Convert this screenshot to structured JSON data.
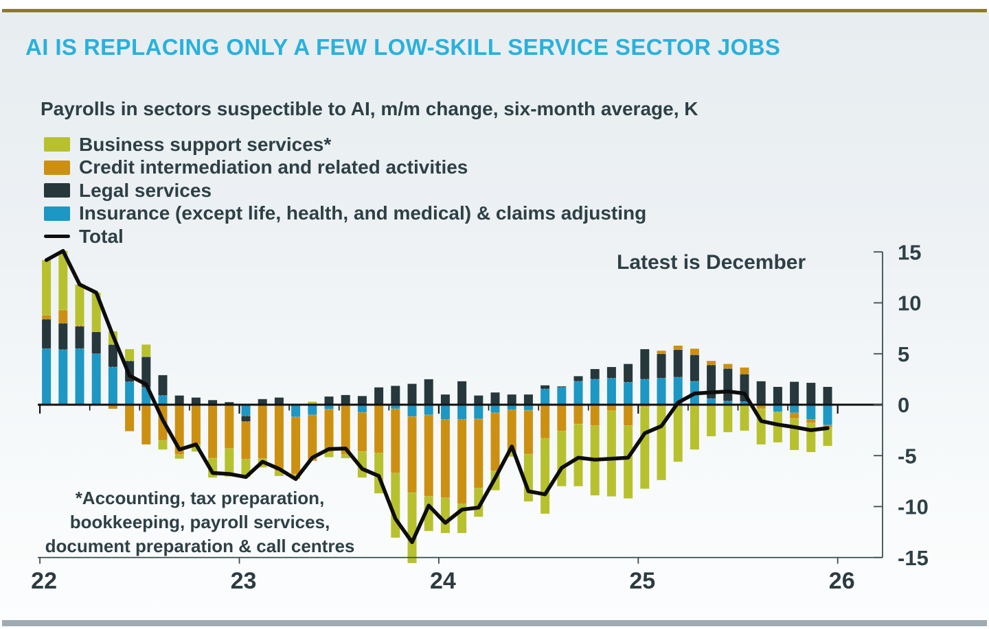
{
  "header": {
    "title": "AI IS REPLACING ONLY A FEW LOW-SKILL SERVICE SECTOR JOBS"
  },
  "colors": {
    "title_accent": "#29b1dc",
    "ink": "#2d4046",
    "top_rule": "#8d7e1d",
    "footer_bar": "#9fabb2",
    "zero_line": "#111111",
    "axis": "#3c4c50"
  },
  "chart_data": {
    "type": "bar",
    "stacked": true,
    "line_overlay": "Total",
    "title": "Payrolls in sectors suspectible to AI, m/m change, six-month average, K",
    "annotation": "Latest is December",
    "footnote_lines": [
      "*Accounting, tax preparation,",
      "bookkeeping, payroll services,",
      "document preparation & call centres"
    ],
    "x_tick_labels": [
      "22",
      "23",
      "24",
      "25",
      "26"
    ],
    "x_range_months": "Jan 2022 - Dec 2025",
    "y_ticks": [
      15,
      10,
      5,
      0,
      -5,
      -10,
      -15
    ],
    "ylim": [
      -15,
      15
    ],
    "legend_position": "top-left",
    "grid": false,
    "series": [
      {
        "key": "business",
        "name": "Business support services*",
        "color": "#b7c12e",
        "values": [
          5.4,
          5.8,
          4.0,
          3.85,
          1.3,
          1.15,
          1.2,
          -0.9,
          -0.4,
          -0.7,
          -1.9,
          -2.75,
          -1.75,
          -0.85,
          -0.5,
          -0.5,
          0.3,
          -0.5,
          -0.35,
          -2.55,
          -3.95,
          -6.35,
          -6.9,
          -3.4,
          -3.45,
          -2.85,
          -2.8,
          -1.9,
          -0.4,
          -4.65,
          -7.4,
          -5.4,
          -6.1,
          -6.85,
          -8.4,
          -7.15,
          -8.05,
          -7.4,
          -5.6,
          -4.4,
          -3.1,
          -2.7,
          -2.55,
          -3.5,
          -3.0,
          -3.1,
          -2.85,
          -1.8
        ]
      },
      {
        "key": "credit",
        "name": "Credit intermediation and related activities",
        "color": "#cc9011",
        "values": [
          0.4,
          1.3,
          0.1,
          0.0,
          -0.4,
          -2.6,
          -3.9,
          -3.5,
          -4.9,
          -3.9,
          -5.25,
          -4.3,
          -3.7,
          -5.3,
          -6.5,
          -5.6,
          -4.5,
          -4.2,
          -4.9,
          -3.85,
          -4.75,
          -6.3,
          -7.5,
          -8.0,
          -7.7,
          -8.3,
          -6.8,
          -5.7,
          -4.2,
          -4.3,
          -3.3,
          -2.6,
          -1.9,
          -2.05,
          -0.6,
          -2.05,
          -0.2,
          0.3,
          0.4,
          0.6,
          0.4,
          0.45,
          0.65,
          -0.4,
          0.0,
          -0.55,
          -0.35,
          -0.25
        ]
      },
      {
        "key": "legal",
        "name": "Legal services",
        "color": "#26383c",
        "values": [
          2.9,
          2.6,
          2.2,
          2.15,
          2.2,
          2.05,
          3.0,
          2.0,
          0.9,
          0.7,
          0.45,
          0.25,
          -0.55,
          0.55,
          0.7,
          0.0,
          0.0,
          0.8,
          0.95,
          0.85,
          1.7,
          1.85,
          2.05,
          2.5,
          1.0,
          2.3,
          0.9,
          1.2,
          1.0,
          1.0,
          0.35,
          0.1,
          0.5,
          1.0,
          1.1,
          1.8,
          2.95,
          2.4,
          2.7,
          2.6,
          3.3,
          3.2,
          2.7,
          2.3,
          1.75,
          2.25,
          2.15,
          1.75
        ]
      },
      {
        "key": "insurance",
        "name": "Insurance (except life, health, and medical) & claims adjusting",
        "color": "#1d97c3",
        "values": [
          5.5,
          5.4,
          5.5,
          5.0,
          3.7,
          2.25,
          1.7,
          0.9,
          0.0,
          0.0,
          0.0,
          0.0,
          -1.1,
          0.0,
          0.0,
          -1.2,
          -1.0,
          -0.45,
          0.0,
          -0.75,
          0.0,
          -0.4,
          -1.15,
          -1.0,
          -1.45,
          -1.45,
          -1.4,
          -0.8,
          -0.5,
          -0.55,
          1.55,
          1.7,
          2.3,
          2.5,
          2.6,
          2.2,
          2.5,
          2.6,
          2.7,
          2.3,
          0.6,
          0.35,
          0.3,
          0.0,
          -0.7,
          -0.8,
          -1.45,
          -2.0
        ]
      },
      {
        "key": "total",
        "name": "Total",
        "type": "line",
        "color": "#0d0d0d",
        "values": [
          14.2,
          15.1,
          11.8,
          11.0,
          6.8,
          2.85,
          2.0,
          -1.5,
          -4.4,
          -3.9,
          -6.7,
          -6.8,
          -7.1,
          -5.6,
          -6.3,
          -7.3,
          -5.2,
          -4.35,
          -4.3,
          -6.3,
          -7.0,
          -11.2,
          -13.5,
          -9.9,
          -11.6,
          -10.3,
          -10.1,
          -7.2,
          -4.1,
          -8.5,
          -8.8,
          -6.2,
          -5.2,
          -5.4,
          -5.3,
          -5.2,
          -2.8,
          -2.1,
          0.2,
          1.1,
          1.2,
          1.3,
          1.1,
          -1.6,
          -1.95,
          -2.2,
          -2.5,
          -2.3
        ]
      }
    ]
  }
}
